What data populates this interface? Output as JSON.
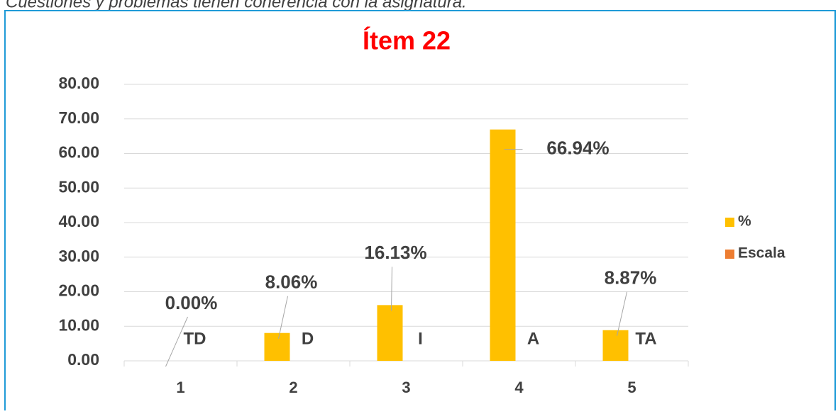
{
  "caption": "Cuestiones y problemas tienen coherencia con la asignatura.",
  "chart_data": {
    "type": "bar",
    "title": "Ítem 22",
    "categories": [
      "1",
      "2",
      "3",
      "4",
      "5"
    ],
    "series": [
      {
        "name": "%",
        "color": "#ffc000",
        "values": [
          0,
          8.06,
          16.13,
          66.94,
          8.87
        ],
        "value_labels": [
          "0.00%",
          "8.06%",
          "16.13%",
          "66.94%",
          "8.87%"
        ]
      },
      {
        "name": "Escala",
        "color": "#ed7d31",
        "values": [
          0,
          0,
          0,
          0,
          0
        ],
        "value_labels": [
          "TD",
          "D",
          "I",
          "A",
          "TA"
        ]
      }
    ],
    "ylim": [
      0,
      80
    ],
    "yticks": [
      {
        "value": 0,
        "label": "0.00"
      },
      {
        "value": 10,
        "label": "10.00"
      },
      {
        "value": 20,
        "label": "20.00"
      },
      {
        "value": 30,
        "label": "30.00"
      },
      {
        "value": 40,
        "label": "40.00"
      },
      {
        "value": 50,
        "label": "50.00"
      },
      {
        "value": 60,
        "label": "60.00"
      },
      {
        "value": 70,
        "label": "70.00"
      },
      {
        "value": 80,
        "label": "80.00"
      }
    ],
    "grid": true,
    "legend": "right"
  }
}
